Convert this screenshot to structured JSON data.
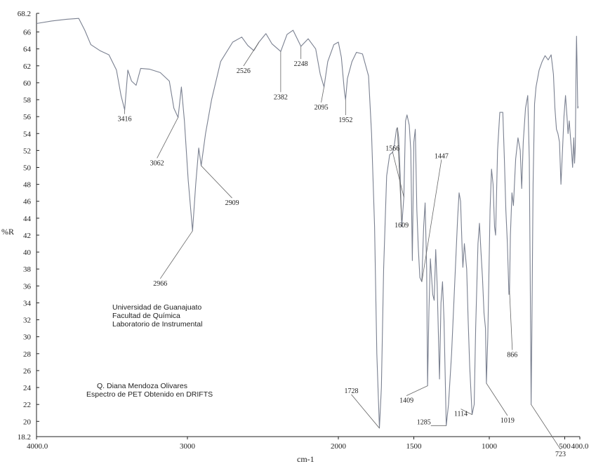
{
  "chart_data": {
    "type": "line",
    "title": "",
    "xlabel": "cm-1",
    "ylabel": "%R",
    "xlim": [
      4000.0,
      400.0
    ],
    "ylim": [
      18.2,
      68.2
    ],
    "x_ticks": [
      {
        "value": 4000,
        "label": "4000.0"
      },
      {
        "value": 3000,
        "label": "3000"
      },
      {
        "value": 2000,
        "label": "2000"
      },
      {
        "value": 1500,
        "label": "1500"
      },
      {
        "value": 1000,
        "label": "1000"
      },
      {
        "value": 500,
        "label": "500"
      },
      {
        "value": 400,
        "label": "400.0"
      }
    ],
    "y_ticks": [
      {
        "value": 68.2,
        "label": "68.2"
      },
      {
        "value": 66,
        "label": "66"
      },
      {
        "value": 64,
        "label": "64"
      },
      {
        "value": 62,
        "label": "62"
      },
      {
        "value": 60,
        "label": "60"
      },
      {
        "value": 58,
        "label": "58"
      },
      {
        "value": 56,
        "label": "56"
      },
      {
        "value": 54,
        "label": "54"
      },
      {
        "value": 52,
        "label": "52"
      },
      {
        "value": 50,
        "label": "50"
      },
      {
        "value": 48,
        "label": "48"
      },
      {
        "value": 46,
        "label": "46"
      },
      {
        "value": 44,
        "label": "44"
      },
      {
        "value": 42,
        "label": "42"
      },
      {
        "value": 40,
        "label": "40"
      },
      {
        "value": 38,
        "label": "38"
      },
      {
        "value": 36,
        "label": "36"
      },
      {
        "value": 34,
        "label": "34"
      },
      {
        "value": 32,
        "label": "32"
      },
      {
        "value": 30,
        "label": "30"
      },
      {
        "value": 28,
        "label": "28"
      },
      {
        "value": 26,
        "label": "26"
      },
      {
        "value": 24,
        "label": "24"
      },
      {
        "value": 22,
        "label": "22"
      },
      {
        "value": 20,
        "label": "20"
      },
      {
        "value": 18.2,
        "label": "18.2"
      }
    ],
    "series": [
      {
        "points": [
          [
            4000,
            67.0
          ],
          [
            3900,
            67.3
          ],
          [
            3800,
            67.5
          ],
          [
            3720,
            67.6
          ],
          [
            3680,
            66.2
          ],
          [
            3640,
            64.5
          ],
          [
            3580,
            63.8
          ],
          [
            3520,
            63.3
          ],
          [
            3470,
            61.5
          ],
          [
            3440,
            58.5
          ],
          [
            3416,
            56.8
          ],
          [
            3395,
            61.5
          ],
          [
            3370,
            60.2
          ],
          [
            3340,
            59.7
          ],
          [
            3310,
            61.7
          ],
          [
            3250,
            61.6
          ],
          [
            3180,
            61.2
          ],
          [
            3120,
            60.2
          ],
          [
            3090,
            57.0
          ],
          [
            3062,
            55.9
          ],
          [
            3040,
            59.5
          ],
          [
            3020,
            55.5
          ],
          [
            2995,
            48.5
          ],
          [
            2966,
            42.5
          ],
          [
            2945,
            48.0
          ],
          [
            2925,
            52.3
          ],
          [
            2909,
            50.2
          ],
          [
            2880,
            54.0
          ],
          [
            2840,
            58.0
          ],
          [
            2780,
            62.5
          ],
          [
            2700,
            64.8
          ],
          [
            2640,
            65.4
          ],
          [
            2600,
            64.4
          ],
          [
            2560,
            63.8
          ],
          [
            2526,
            64.8
          ],
          [
            2480,
            65.8
          ],
          [
            2440,
            64.6
          ],
          [
            2382,
            63.7
          ],
          [
            2340,
            65.7
          ],
          [
            2300,
            66.2
          ],
          [
            2248,
            64.3
          ],
          [
            2200,
            65.2
          ],
          [
            2150,
            64.0
          ],
          [
            2120,
            61.0
          ],
          [
            2095,
            59.5
          ],
          [
            2070,
            62.5
          ],
          [
            2030,
            64.5
          ],
          [
            2000,
            64.8
          ],
          [
            1980,
            63.0
          ],
          [
            1960,
            59.0
          ],
          [
            1952,
            58.0
          ],
          [
            1940,
            60.5
          ],
          [
            1910,
            62.5
          ],
          [
            1880,
            63.6
          ],
          [
            1840,
            63.4
          ],
          [
            1800,
            60.8
          ],
          [
            1780,
            54.0
          ],
          [
            1760,
            43.0
          ],
          [
            1745,
            28.0
          ],
          [
            1728,
            19.2
          ],
          [
            1715,
            24.0
          ],
          [
            1700,
            38.0
          ],
          [
            1680,
            49.0
          ],
          [
            1660,
            51.5
          ],
          [
            1640,
            51.8
          ],
          [
            1630,
            52.5
          ],
          [
            1615,
            54.5
          ],
          [
            1609,
            54.7
          ],
          [
            1600,
            53.5
          ],
          [
            1590,
            49.0
          ],
          [
            1580,
            43.0
          ],
          [
            1566,
            46.5
          ],
          [
            1555,
            55.5
          ],
          [
            1545,
            56.2
          ],
          [
            1530,
            55.0
          ],
          [
            1520,
            52.0
          ],
          [
            1510,
            39.0
          ],
          [
            1500,
            53.0
          ],
          [
            1490,
            54.5
          ],
          [
            1480,
            45.0
          ],
          [
            1470,
            40.5
          ],
          [
            1460,
            37.0
          ],
          [
            1447,
            36.5
          ],
          [
            1435,
            43.0
          ],
          [
            1425,
            45.8
          ],
          [
            1415,
            38.0
          ],
          [
            1409,
            24.2
          ],
          [
            1400,
            33.0
          ],
          [
            1390,
            39.2
          ],
          [
            1375,
            35.0
          ],
          [
            1365,
            34.3
          ],
          [
            1355,
            40.3
          ],
          [
            1345,
            36.0
          ],
          [
            1330,
            25.0
          ],
          [
            1320,
            34.0
          ],
          [
            1310,
            36.5
          ],
          [
            1300,
            32.0
          ],
          [
            1285,
            19.5
          ],
          [
            1270,
            22.0
          ],
          [
            1250,
            28.0
          ],
          [
            1230,
            36.0
          ],
          [
            1210,
            44.0
          ],
          [
            1200,
            47.0
          ],
          [
            1190,
            46.0
          ],
          [
            1180,
            40.5
          ],
          [
            1175,
            38.2
          ],
          [
            1165,
            41.0
          ],
          [
            1150,
            38.0
          ],
          [
            1140,
            32.0
          ],
          [
            1130,
            26.5
          ],
          [
            1114,
            20.8
          ],
          [
            1100,
            22.0
          ],
          [
            1090,
            31.0
          ],
          [
            1075,
            41.0
          ],
          [
            1065,
            43.4
          ],
          [
            1055,
            40.0
          ],
          [
            1045,
            37.0
          ],
          [
            1035,
            32.8
          ],
          [
            1025,
            31.0
          ],
          [
            1019,
            24.5
          ],
          [
            1010,
            30.0
          ],
          [
            995,
            45.0
          ],
          [
            985,
            49.8
          ],
          [
            975,
            48.0
          ],
          [
            965,
            43.0
          ],
          [
            958,
            42.0
          ],
          [
            945,
            52.0
          ],
          [
            930,
            56.5
          ],
          [
            910,
            56.5
          ],
          [
            900,
            51.0
          ],
          [
            890,
            45.0
          ],
          [
            880,
            41.0
          ],
          [
            870,
            35.0
          ],
          [
            866,
            35.4
          ],
          [
            860,
            42.0
          ],
          [
            850,
            47.0
          ],
          [
            840,
            45.5
          ],
          [
            825,
            51.0
          ],
          [
            810,
            53.5
          ],
          [
            795,
            52.0
          ],
          [
            785,
            47.5
          ],
          [
            775,
            53.0
          ],
          [
            760,
            57.0
          ],
          [
            745,
            58.5
          ],
          [
            735,
            51.0
          ],
          [
            728,
            35.0
          ],
          [
            723,
            22.0
          ],
          [
            718,
            30.0
          ],
          [
            710,
            48.0
          ],
          [
            700,
            57.5
          ],
          [
            690,
            59.5
          ],
          [
            670,
            61.5
          ],
          [
            650,
            62.5
          ],
          [
            630,
            63.2
          ],
          [
            610,
            62.7
          ],
          [
            590,
            63.3
          ],
          [
            575,
            61.0
          ],
          [
            565,
            57.0
          ],
          [
            555,
            54.5
          ],
          [
            545,
            54.0
          ],
          [
            535,
            53.0
          ],
          [
            525,
            48.0
          ],
          [
            515,
            52.0
          ],
          [
            505,
            56.0
          ],
          [
            495,
            58.5
          ],
          [
            485,
            56.0
          ],
          [
            478,
            54.0
          ],
          [
            470,
            55.5
          ],
          [
            462,
            53.5
          ],
          [
            455,
            52.0
          ],
          [
            448,
            50.0
          ],
          [
            440,
            53.5
          ],
          [
            435,
            50.5
          ],
          [
            430,
            52.5
          ],
          [
            425,
            61.5
          ],
          [
            422,
            65.5
          ],
          [
            418,
            62.0
          ],
          [
            414,
            57.0
          ],
          [
            410,
            57.2
          ]
        ]
      }
    ],
    "peaks": [
      {
        "label": "3416",
        "x": 3416,
        "y": 56.8
      },
      {
        "label": "3062",
        "x": 3062,
        "y": 55.9
      },
      {
        "label": "2966",
        "x": 2966,
        "y": 42.5
      },
      {
        "label": "2909",
        "x": 2909,
        "y": 50.2
      },
      {
        "label": "2526",
        "x": 2526,
        "y": 64.8
      },
      {
        "label": "2382",
        "x": 2382,
        "y": 63.7
      },
      {
        "label": "2248",
        "x": 2248,
        "y": 64.3
      },
      {
        "label": "2095",
        "x": 2095,
        "y": 59.5
      },
      {
        "label": "1952",
        "x": 1952,
        "y": 58.0
      },
      {
        "label": "1728",
        "x": 1728,
        "y": 19.2
      },
      {
        "label": "1609",
        "x": 1609,
        "y": 54.7
      },
      {
        "label": "1566",
        "x": 1566,
        "y": 46.5
      },
      {
        "label": "1447",
        "x": 1447,
        "y": 36.5
      },
      {
        "label": "1409",
        "x": 1409,
        "y": 24.2
      },
      {
        "label": "1285",
        "x": 1285,
        "y": 19.5
      },
      {
        "label": "1114",
        "x": 1114,
        "y": 20.8
      },
      {
        "label": "1019",
        "x": 1019,
        "y": 24.5
      },
      {
        "label": "866",
        "x": 866,
        "y": 35.4
      },
      {
        "label": "723",
        "x": 723,
        "y": 22.0
      }
    ],
    "grid": false,
    "legend": "none",
    "line_color": "#7a8090"
  },
  "annotations": {
    "institution": {
      "line1": "Universidad de Guanajuato",
      "line2": "Facultad de Química",
      "line3": "Laboratorio de Instrumental"
    },
    "sample": {
      "line1": "Q. Diana Mendoza Olivares",
      "line2": "Espectro de PET Obtenido en DRIFTS"
    }
  }
}
